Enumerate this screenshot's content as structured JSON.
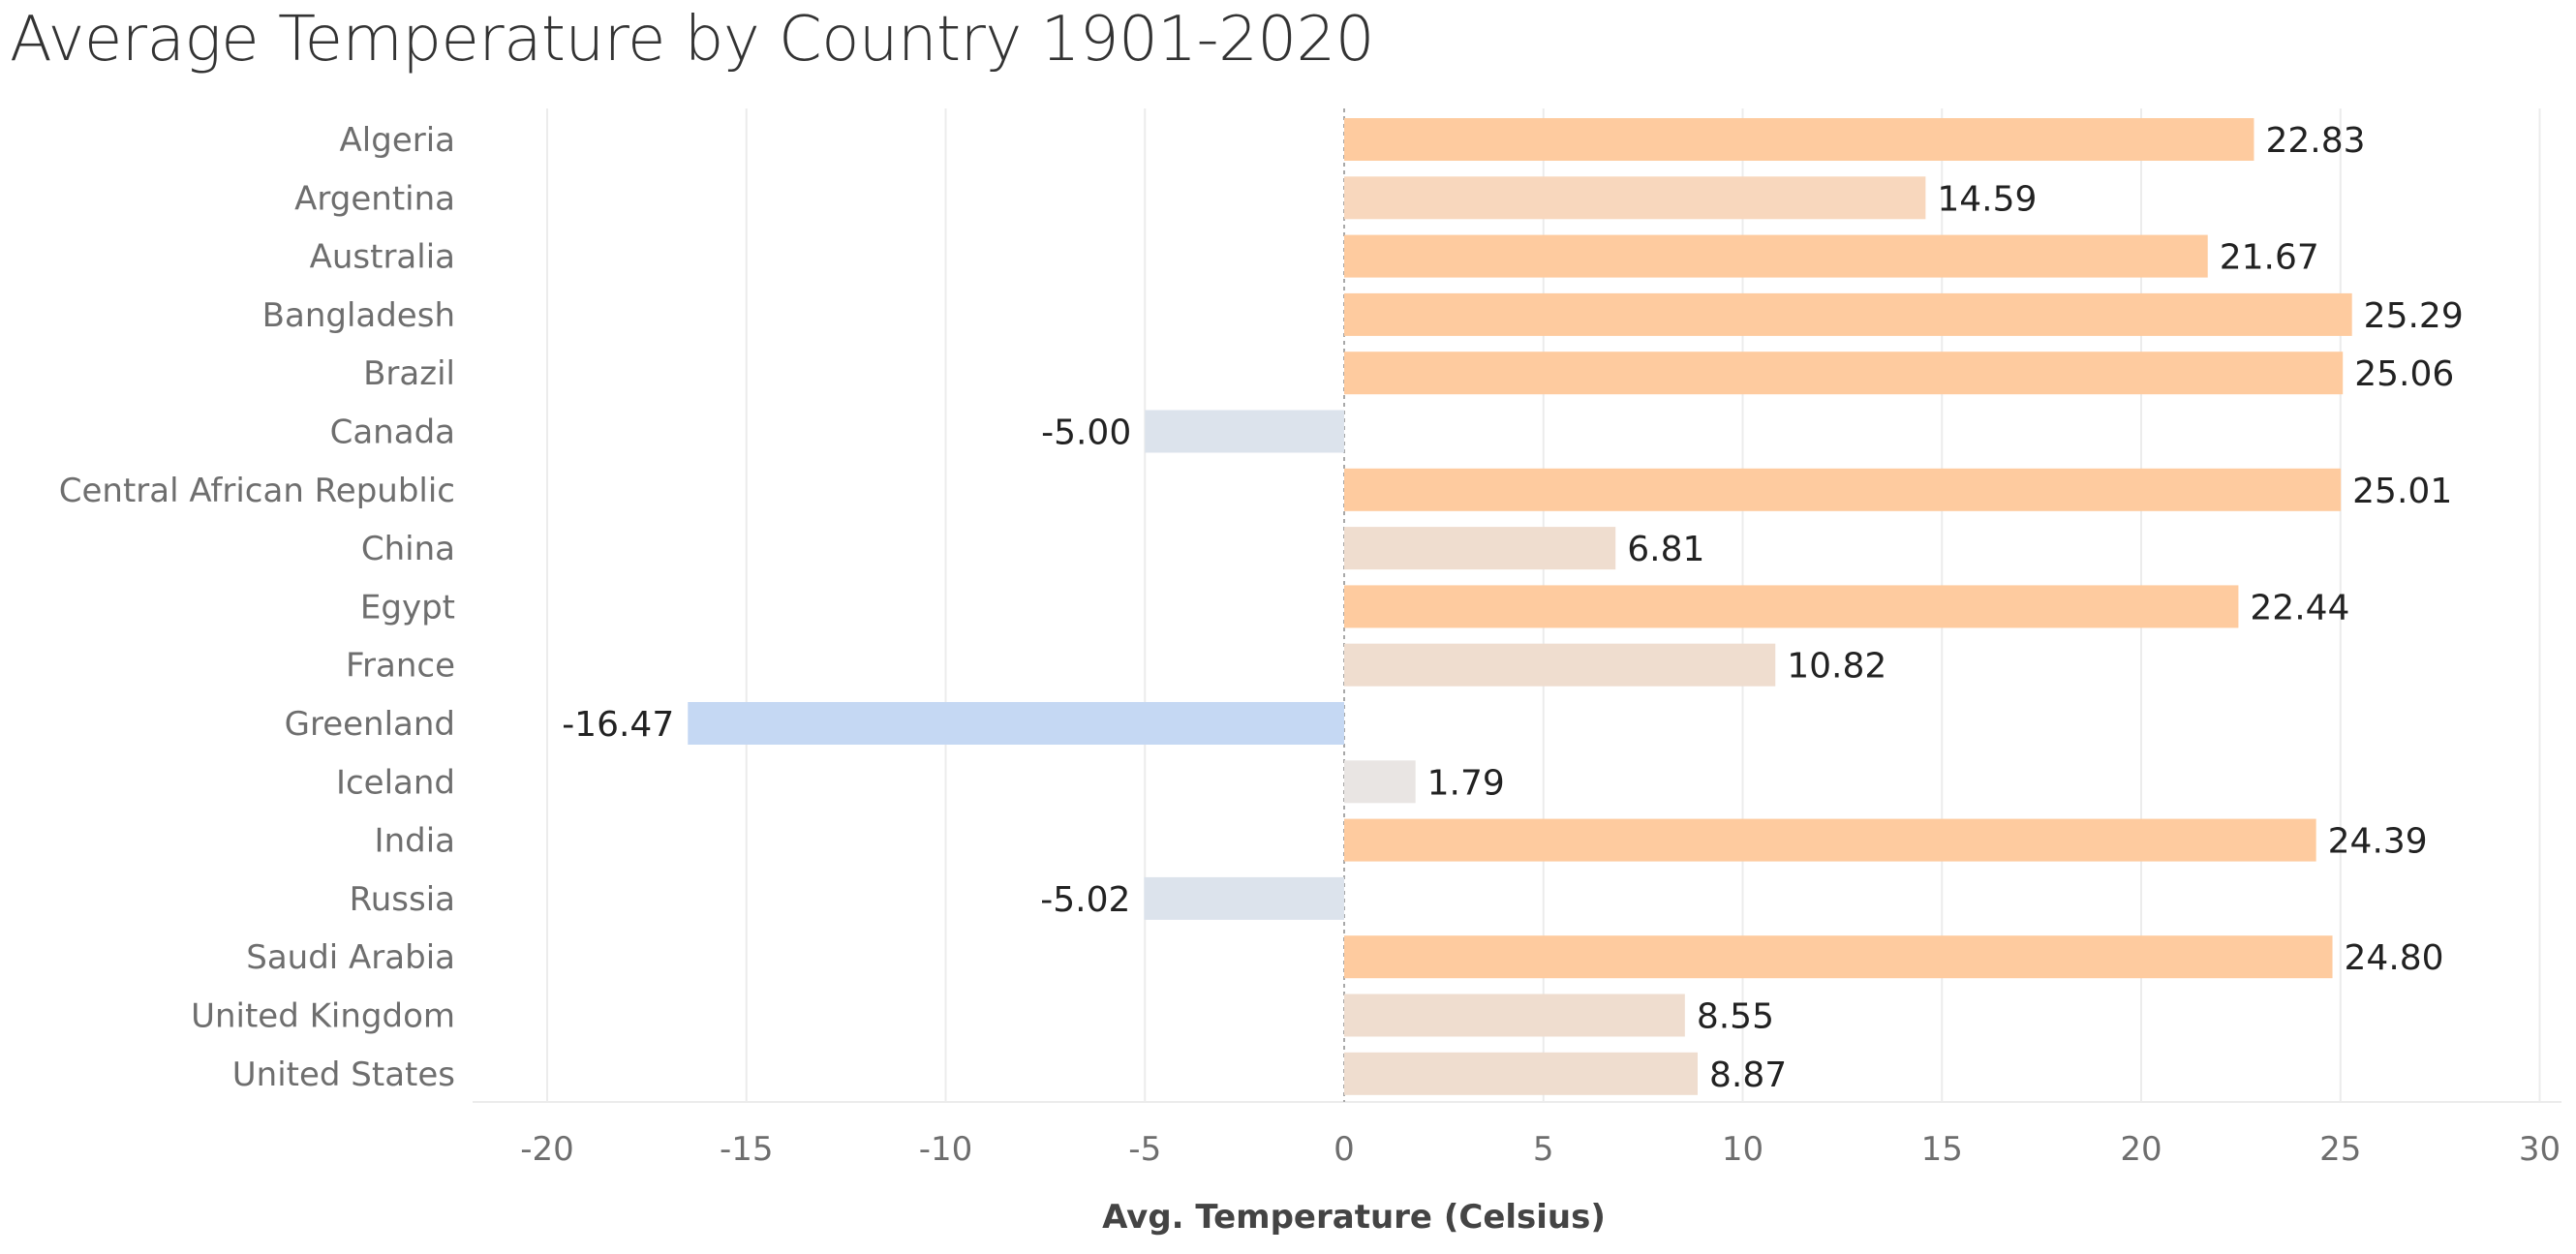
{
  "chart_data": {
    "type": "bar",
    "orientation": "horizontal",
    "title": "Average Temperature by Country 1901-2020",
    "xlabel": "Avg. Temperature (Celsius)",
    "ylabel": "",
    "xlim": [
      -22,
      31
    ],
    "xticks": [
      -20,
      -15,
      -10,
      -5,
      0,
      5,
      10,
      15,
      20,
      25,
      30
    ],
    "grid": true,
    "legend": "none",
    "categories": [
      "Algeria",
      "Argentina",
      "Australia",
      "Bangladesh",
      "Brazil",
      "Canada",
      "Central African Republic",
      "China",
      "Egypt",
      "France",
      "Greenland",
      "Iceland",
      "India",
      "Russia",
      "Saudi Arabia",
      "United Kingdom",
      "United States"
    ],
    "values": [
      22.83,
      14.59,
      21.67,
      25.29,
      25.06,
      -5.0,
      25.01,
      6.81,
      22.44,
      10.82,
      -16.47,
      1.79,
      24.39,
      -5.02,
      24.8,
      8.55,
      8.87
    ],
    "value_labels": [
      "22.83",
      "14.59",
      "21.67",
      "25.29",
      "25.06",
      "-5.00",
      "25.01",
      "6.81",
      "22.44",
      "10.82",
      "-16.47",
      "1.79",
      "24.39",
      "-5.02",
      "24.80",
      "8.55",
      "8.87"
    ],
    "colors": {
      "cold_strong": "#c5d8f3",
      "cold_light": "#dce3ec",
      "neutral": "#e9e5e3",
      "warm_light": "#efddcf",
      "warm_mid": "#f8d7bd",
      "warm_strong": "#fecb9f",
      "grid": "#ececec",
      "zero_line": "#a8a8a8"
    }
  }
}
